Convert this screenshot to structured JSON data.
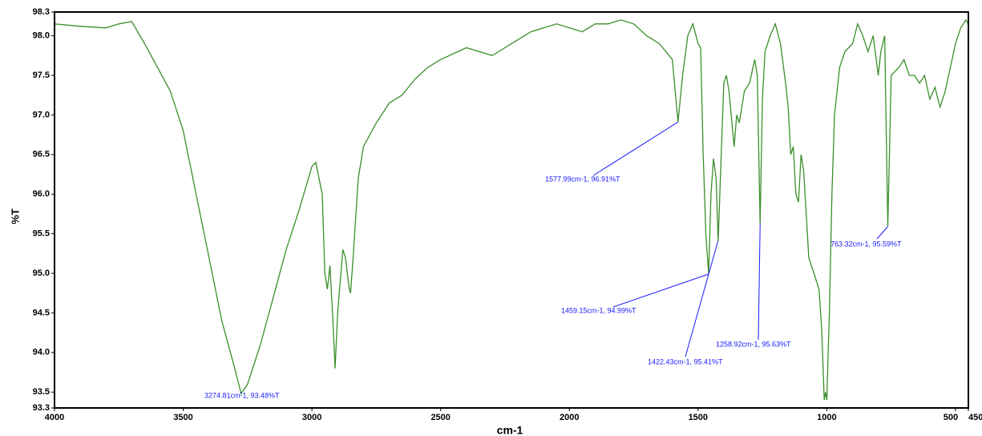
{
  "chart_data": {
    "type": "line",
    "xlabel": "cm-1",
    "ylabel": "%T",
    "color": "#3a8f2a",
    "xlim": [
      4000,
      450
    ],
    "ylim": [
      93.3,
      98.3
    ],
    "xticks": [
      4000,
      3500,
      3000,
      2500,
      2000,
      1500,
      1000,
      500,
      450
    ],
    "yticks": [
      93.3,
      93.5,
      {
        "value": 94,
        "label": "94.0"
      },
      94.5,
      {
        "value": 95,
        "label": "95.0"
      },
      95.5,
      {
        "value": 96,
        "label": "96.0"
      },
      96.5,
      {
        "value": 97,
        "label": "97.0"
      },
      97.5,
      {
        "value": 98,
        "label": "98.0"
      },
      98.3
    ],
    "x": [
      4000,
      3900,
      3800,
      3750,
      3700,
      3650,
      3600,
      3550,
      3500,
      3450,
      3400,
      3350,
      3300,
      3275,
      3250,
      3200,
      3150,
      3100,
      3050,
      3000,
      2985,
      2960,
      2950,
      2940,
      2930,
      2920,
      2910,
      2900,
      2880,
      2870,
      2855,
      2850,
      2840,
      2820,
      2800,
      2750,
      2700,
      2650,
      2600,
      2550,
      2500,
      2400,
      2350,
      2300,
      2250,
      2200,
      2150,
      2100,
      2050,
      2000,
      1950,
      1900,
      1850,
      1800,
      1750,
      1700,
      1650,
      1600,
      1578,
      1560,
      1540,
      1520,
      1500,
      1490,
      1480,
      1470,
      1459,
      1450,
      1440,
      1430,
      1422,
      1410,
      1400,
      1390,
      1380,
      1360,
      1350,
      1340,
      1320,
      1300,
      1280,
      1270,
      1259,
      1250,
      1240,
      1220,
      1200,
      1180,
      1160,
      1150,
      1140,
      1130,
      1120,
      1110,
      1100,
      1090,
      1070,
      1050,
      1030,
      1020,
      1010,
      1005,
      1000,
      990,
      980,
      970,
      950,
      930,
      900,
      880,
      860,
      840,
      820,
      800,
      790,
      775,
      763,
      750,
      720,
      700,
      680,
      660,
      640,
      620,
      600,
      580,
      560,
      540,
      520,
      500,
      480,
      460,
      450
    ],
    "values": [
      98.15,
      98.12,
      98.1,
      98.15,
      98.18,
      97.9,
      97.6,
      97.3,
      96.8,
      96.0,
      95.2,
      94.4,
      93.8,
      93.48,
      93.6,
      94.1,
      94.7,
      95.3,
      95.8,
      96.35,
      96.4,
      96.0,
      95.0,
      94.8,
      95.1,
      94.5,
      93.8,
      94.5,
      95.3,
      95.2,
      94.8,
      94.75,
      95.2,
      96.2,
      96.6,
      96.9,
      97.15,
      97.25,
      97.45,
      97.6,
      97.7,
      97.85,
      97.8,
      97.75,
      97.85,
      97.95,
      98.05,
      98.1,
      98.15,
      98.1,
      98.05,
      98.15,
      98.15,
      98.2,
      98.15,
      98.0,
      97.9,
      97.7,
      96.91,
      97.5,
      98.0,
      98.15,
      97.9,
      97.85,
      96.5,
      95.5,
      94.99,
      96.0,
      96.45,
      96.2,
      95.41,
      96.5,
      97.4,
      97.5,
      97.3,
      96.6,
      97.0,
      96.9,
      97.3,
      97.4,
      97.7,
      97.5,
      95.63,
      97.2,
      97.8,
      98.0,
      98.15,
      97.9,
      97.4,
      97.1,
      96.5,
      96.6,
      96.0,
      95.9,
      96.5,
      96.3,
      95.2,
      95.0,
      94.8,
      94.3,
      93.4,
      93.5,
      93.4,
      94.5,
      96.0,
      97.0,
      97.6,
      97.8,
      97.9,
      98.15,
      98.0,
      97.8,
      98.0,
      97.5,
      97.8,
      98.0,
      95.59,
      97.5,
      97.6,
      97.7,
      97.5,
      97.5,
      97.4,
      97.5,
      97.2,
      97.35,
      97.1,
      97.3,
      97.6,
      97.9,
      98.1,
      98.2,
      98.15
    ],
    "annotations": [
      {
        "text": "3274.81cm-1, 93.48%T",
        "x": 3274.81,
        "y": 93.48
      },
      {
        "text": "1577.99cm-1, 96.91%T",
        "x": 1577.99,
        "y": 96.91
      },
      {
        "text": "1459.15cm-1, 94.99%T",
        "x": 1459.15,
        "y": 94.99
      },
      {
        "text": "1422.43cm-1, 95.41%T",
        "x": 1422.43,
        "y": 95.41
      },
      {
        "text": "1258.92cm-1, 95.63%T",
        "x": 1258.92,
        "y": 95.63
      },
      {
        "text": "763.32cm-1, 95.59%T",
        "x": 763.32,
        "y": 95.59
      }
    ]
  }
}
